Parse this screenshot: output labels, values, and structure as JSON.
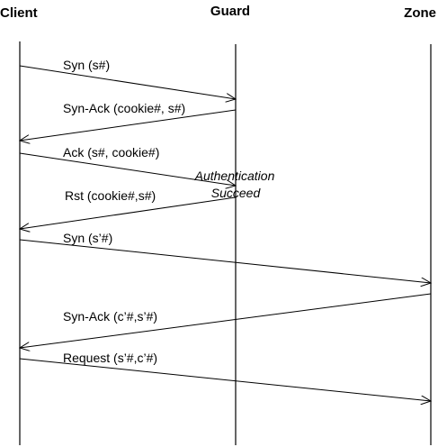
{
  "actors": {
    "client": "Client",
    "guard": "Guard",
    "zone": "Zone"
  },
  "messages": [
    {
      "label": "Syn (s#)",
      "from": "client",
      "to": "guard"
    },
    {
      "label": "Syn-Ack (cookie#, s#)",
      "from": "guard",
      "to": "client"
    },
    {
      "label": "Ack (s#, cookie#)",
      "from": "client",
      "to": "guard"
    },
    {
      "label": "Rst (cookie#,s#)",
      "from": "guard",
      "to": "client"
    },
    {
      "label": "Syn (s’#)",
      "from": "client",
      "to": "zone"
    },
    {
      "label": "Syn-Ack (c’#,s’#)",
      "from": "zone",
      "to": "client"
    },
    {
      "label": "Request (s’#,c’#)",
      "from": "client",
      "to": "zone"
    }
  ],
  "note": {
    "line1": "Authentication",
    "line2": "Succeed"
  }
}
